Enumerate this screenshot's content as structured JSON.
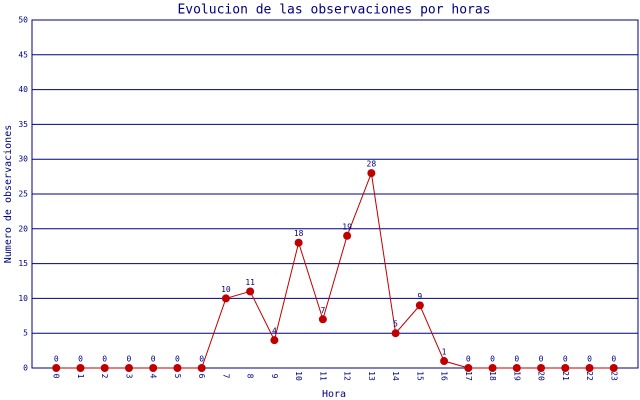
{
  "chart_data": {
    "type": "line",
    "title": "Evolucion de las observaciones por horas",
    "x_label": "Hora",
    "y_label": "Numero de observaciones",
    "categories": [
      "0",
      "1",
      "2",
      "3",
      "4",
      "5",
      "6",
      "7",
      "8",
      "9",
      "10",
      "11",
      "12",
      "13",
      "14",
      "15",
      "16",
      "17",
      "18",
      "19",
      "20",
      "21",
      "22",
      "23"
    ],
    "series": [
      {
        "color": "#c00000",
        "values": [
          0,
          0,
          0,
          0,
          0,
          0,
          0,
          10,
          11,
          4,
          18,
          7,
          19,
          28,
          5,
          9,
          1,
          0,
          0,
          0,
          0,
          0,
          0,
          0
        ]
      }
    ],
    "ylim": [
      0,
      50
    ],
    "yticks": [
      0,
      5,
      10,
      15,
      20,
      25,
      30,
      35,
      40,
      45,
      50
    ],
    "grid": true
  }
}
